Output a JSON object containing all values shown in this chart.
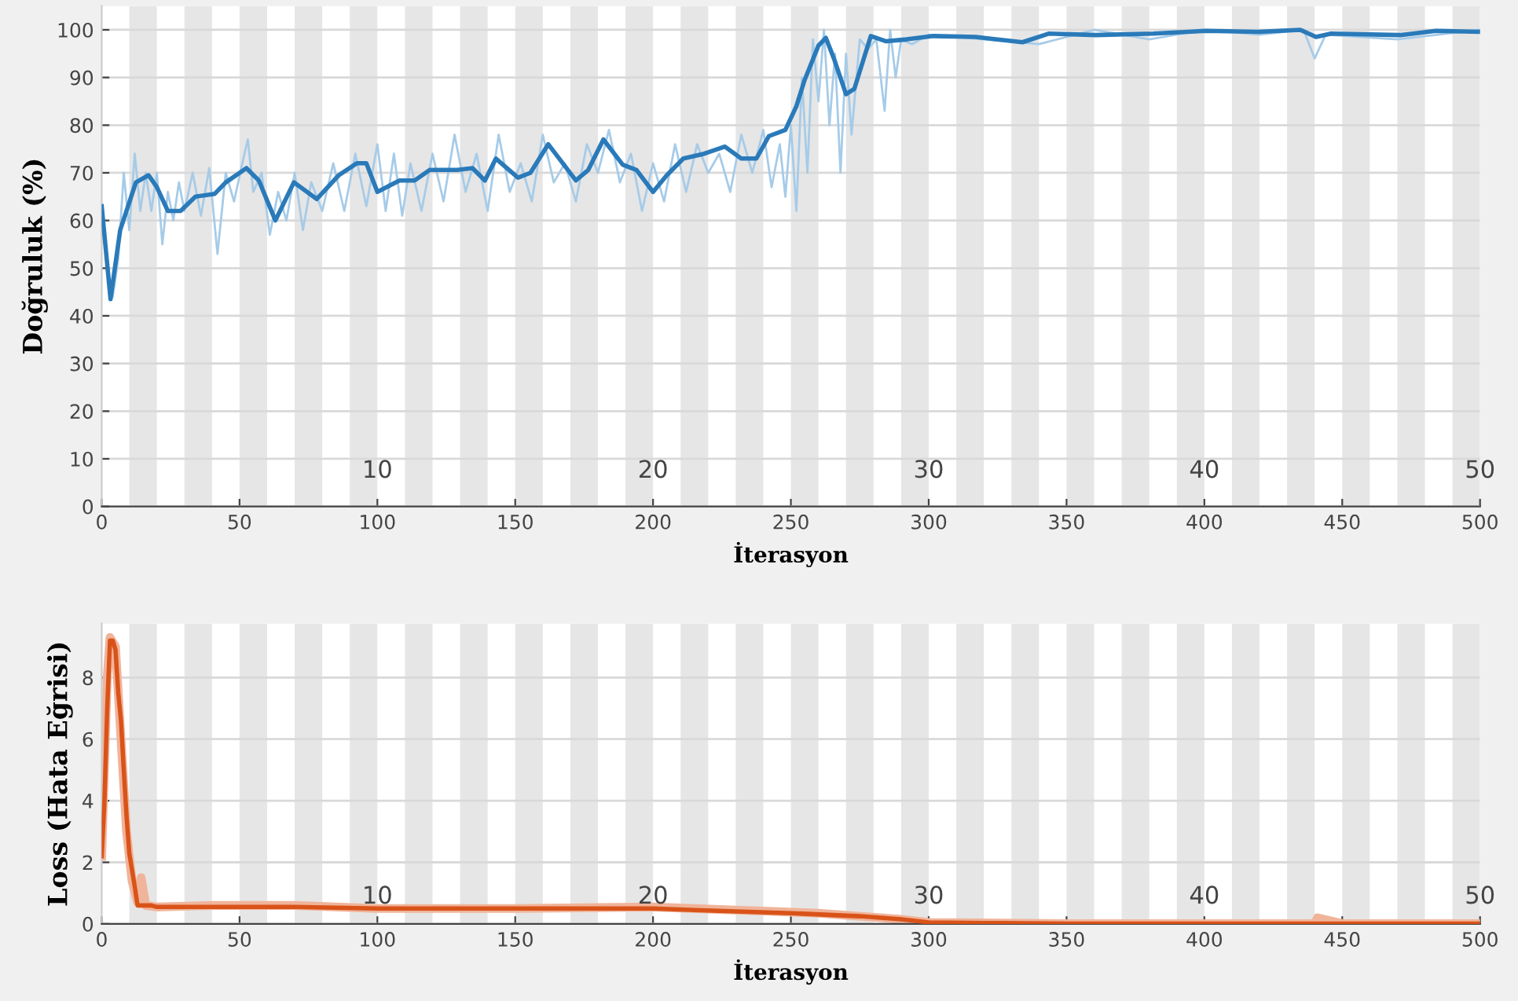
{
  "chart_data": [
    {
      "type": "line",
      "xlabel": "İterasyon",
      "ylabel": "Doğruluk (%)",
      "xlim": [
        0,
        500
      ],
      "ylim": [
        0,
        105
      ],
      "xticks": [
        0,
        50,
        100,
        150,
        200,
        250,
        300,
        350,
        400,
        450,
        500
      ],
      "yticks": [
        0,
        10,
        20,
        30,
        40,
        50,
        60,
        70,
        80,
        90,
        100
      ],
      "grid": "y",
      "legend": false,
      "marker": "none",
      "line_style": "solid",
      "series": [
        {
          "color": "#a6cbe8",
          "x": [
            0,
            2,
            4,
            6,
            8,
            10,
            12,
            14,
            16,
            18,
            20,
            22,
            24,
            26,
            28,
            30,
            33,
            36,
            39,
            42,
            45,
            48,
            51,
            53,
            55,
            58,
            61,
            64,
            67,
            70,
            73,
            76,
            80,
            84,
            88,
            92,
            96,
            100,
            103,
            106,
            109,
            112,
            116,
            120,
            124,
            128,
            132,
            136,
            140,
            144,
            148,
            152,
            156,
            160,
            164,
            168,
            172,
            176,
            180,
            184,
            188,
            192,
            196,
            200,
            204,
            208,
            212,
            216,
            220,
            224,
            228,
            232,
            236,
            240,
            243,
            246,
            248,
            250,
            252,
            254,
            256,
            258,
            260,
            262,
            264,
            266,
            268,
            270,
            272,
            275,
            278,
            281,
            284,
            286,
            288,
            290,
            294,
            300,
            320,
            340,
            360,
            380,
            400,
            420,
            436,
            440,
            444,
            470,
            500
          ],
          "values": [
            63,
            50,
            44,
            52,
            70,
            58,
            74,
            62,
            70,
            62,
            70,
            55,
            66,
            60,
            68,
            62,
            70,
            61,
            71,
            53,
            70,
            64,
            72,
            77,
            66,
            70,
            57,
            66,
            60,
            70,
            58,
            68,
            62,
            72,
            62,
            74,
            63,
            76,
            62,
            74,
            61,
            72,
            62,
            74,
            64,
            78,
            66,
            74,
            62,
            78,
            66,
            72,
            64,
            78,
            68,
            72,
            64,
            76,
            70,
            79,
            68,
            74,
            62,
            72,
            64,
            76,
            66,
            76,
            70,
            74,
            66,
            78,
            70,
            79,
            67,
            76,
            65,
            80,
            62,
            90,
            70,
            98,
            85,
            100,
            80,
            95,
            70,
            95,
            78,
            98,
            96,
            98,
            83,
            100,
            90,
            98,
            97,
            99,
            98,
            97,
            100,
            98,
            100,
            99,
            100,
            94,
            99,
            98,
            100
          ]
        },
        {
          "color": "#2a7ab9",
          "x": [
            0,
            3.2,
            6.7,
            12.4,
            17,
            20,
            24,
            28.6,
            34,
            41,
            45,
            52.5,
            57,
            63,
            69.7,
            78,
            86,
            92.5,
            96,
            100,
            108,
            113.5,
            119,
            129,
            134.5,
            139,
            143,
            151,
            155.5,
            162,
            172,
            176.5,
            182,
            189,
            194,
            200,
            205,
            211,
            218.5,
            226,
            232,
            237.5,
            242,
            248,
            252,
            255,
            260,
            262.7,
            265.6,
            270,
            273,
            279,
            284.6,
            292,
            301.7,
            317,
            334,
            343.5,
            360.6,
            381.5,
            400.6,
            419.6,
            434.8,
            440.5,
            446,
            471,
            484,
            500
          ],
          "values": [
            63,
            43.5,
            58,
            68,
            69.5,
            67,
            62,
            62,
            65,
            65.6,
            68,
            71,
            68.4,
            60,
            68,
            64.5,
            69.5,
            72,
            72,
            66,
            68.4,
            68.4,
            70.6,
            70.6,
            71,
            68.4,
            73,
            69,
            70,
            76,
            68.4,
            70.6,
            77,
            71.7,
            70.6,
            66,
            69.5,
            73,
            74,
            75.5,
            73,
            73,
            77.7,
            79,
            84,
            89.5,
            96.7,
            98.3,
            94,
            86.5,
            87.6,
            98.7,
            97.6,
            98,
            98.7,
            98.5,
            97.4,
            99.2,
            98.9,
            99.2,
            99.8,
            99.6,
            100,
            98.5,
            99.2,
            98.9,
            99.8,
            99.6
          ]
        }
      ],
      "bands": [
        {
          "axis": "x",
          "from": 10,
          "to": 20,
          "color": "#e6e6e6"
        },
        {
          "axis": "x",
          "from": 30,
          "to": 40,
          "color": "#e6e6e6"
        },
        {
          "axis": "x",
          "from": 50,
          "to": 60,
          "color": "#e6e6e6"
        },
        {
          "axis": "x",
          "from": 70,
          "to": 80,
          "color": "#e6e6e6"
        },
        {
          "axis": "x",
          "from": 90,
          "to": 100,
          "color": "#e6e6e6"
        },
        {
          "axis": "x",
          "from": 110,
          "to": 120,
          "color": "#e6e6e6"
        },
        {
          "axis": "x",
          "from": 130,
          "to": 140,
          "color": "#e6e6e6"
        },
        {
          "axis": "x",
          "from": 150,
          "to": 160,
          "color": "#e6e6e6"
        },
        {
          "axis": "x",
          "from": 170,
          "to": 180,
          "color": "#e6e6e6"
        },
        {
          "axis": "x",
          "from": 190,
          "to": 200,
          "color": "#e6e6e6"
        },
        {
          "axis": "x",
          "from": 210,
          "to": 220,
          "color": "#e6e6e6"
        },
        {
          "axis": "x",
          "from": 230,
          "to": 240,
          "color": "#e6e6e6"
        },
        {
          "axis": "x",
          "from": 250,
          "to": 260,
          "color": "#e6e6e6"
        },
        {
          "axis": "x",
          "from": 270,
          "to": 280,
          "color": "#e6e6e6"
        },
        {
          "axis": "x",
          "from": 290,
          "to": 300,
          "color": "#e6e6e6"
        },
        {
          "axis": "x",
          "from": 310,
          "to": 320,
          "color": "#e6e6e6"
        },
        {
          "axis": "x",
          "from": 330,
          "to": 340,
          "color": "#e6e6e6"
        },
        {
          "axis": "x",
          "from": 350,
          "to": 360,
          "color": "#e6e6e6"
        },
        {
          "axis": "x",
          "from": 370,
          "to": 380,
          "color": "#e6e6e6"
        },
        {
          "axis": "x",
          "from": 390,
          "to": 400,
          "color": "#e6e6e6"
        },
        {
          "axis": "x",
          "from": 410,
          "to": 420,
          "color": "#e6e6e6"
        },
        {
          "axis": "x",
          "from": 430,
          "to": 440,
          "color": "#e6e6e6"
        },
        {
          "axis": "x",
          "from": 450,
          "to": 460,
          "color": "#e6e6e6"
        },
        {
          "axis": "x",
          "from": 470,
          "to": 480,
          "color": "#e6e6e6"
        },
        {
          "axis": "x",
          "from": 490,
          "to": 500,
          "color": "#e6e6e6"
        }
      ],
      "annotations": [
        {
          "text": "10",
          "x": 100,
          "y": 5
        },
        {
          "text": "20",
          "x": 200,
          "y": 5
        },
        {
          "text": "30",
          "x": 300,
          "y": 5
        },
        {
          "text": "40",
          "x": 400,
          "y": 5
        },
        {
          "text": "50",
          "x": 500,
          "y": 5
        }
      ]
    },
    {
      "type": "line",
      "xlabel": "İterasyon",
      "ylabel": "Loss (Hata Eğrisi)",
      "xlim": [
        0,
        500
      ],
      "ylim": [
        0,
        9.75
      ],
      "xticks": [
        0,
        50,
        100,
        150,
        200,
        250,
        300,
        350,
        400,
        450,
        500
      ],
      "yticks": [
        0,
        2,
        4,
        6,
        8
      ],
      "grid": "y",
      "legend": false,
      "marker": "none",
      "line_style": "solid",
      "series": [
        {
          "color": "#f0b49a",
          "x": [
            0,
            2,
            3,
            5,
            7,
            9,
            11,
            13,
            14.3,
            16,
            20,
            40,
            70,
            100,
            150,
            200,
            230,
            260,
            290,
            300,
            350,
            440,
            441,
            450,
            500
          ],
          "values": [
            2.2,
            8,
            9.3,
            9,
            6,
            3,
            1.4,
            0.7,
            1.5,
            0.6,
            0.55,
            0.6,
            0.6,
            0.5,
            0.5,
            0.55,
            0.45,
            0.35,
            0.15,
            0.05,
            0.01,
            0.01,
            0.2,
            0.01,
            0.01
          ]
        },
        {
          "color": "#d95319",
          "x": [
            0,
            1,
            2,
            3,
            4,
            5,
            6,
            7,
            8,
            9,
            10,
            12,
            13,
            15,
            18,
            20,
            50,
            70,
            100,
            150,
            200,
            215,
            250,
            275,
            290,
            300,
            320,
            350,
            400,
            500
          ],
          "values": [
            2.2,
            4,
            7,
            9.2,
            9.2,
            8.9,
            7.5,
            6.6,
            5,
            3.5,
            2.3,
            1.2,
            0.6,
            0.6,
            0.6,
            0.55,
            0.55,
            0.55,
            0.5,
            0.5,
            0.5,
            0.45,
            0.35,
            0.25,
            0.15,
            0.05,
            0.03,
            0.01,
            0.01,
            0.01
          ]
        }
      ],
      "bands": [
        {
          "axis": "x",
          "from": 10,
          "to": 20,
          "color": "#e6e6e6"
        },
        {
          "axis": "x",
          "from": 30,
          "to": 40,
          "color": "#e6e6e6"
        },
        {
          "axis": "x",
          "from": 50,
          "to": 60,
          "color": "#e6e6e6"
        },
        {
          "axis": "x",
          "from": 70,
          "to": 80,
          "color": "#e6e6e6"
        },
        {
          "axis": "x",
          "from": 90,
          "to": 100,
          "color": "#e6e6e6"
        },
        {
          "axis": "x",
          "from": 110,
          "to": 120,
          "color": "#e6e6e6"
        },
        {
          "axis": "x",
          "from": 130,
          "to": 140,
          "color": "#e6e6e6"
        },
        {
          "axis": "x",
          "from": 150,
          "to": 160,
          "color": "#e6e6e6"
        },
        {
          "axis": "x",
          "from": 170,
          "to": 180,
          "color": "#e6e6e6"
        },
        {
          "axis": "x",
          "from": 190,
          "to": 200,
          "color": "#e6e6e6"
        },
        {
          "axis": "x",
          "from": 210,
          "to": 220,
          "color": "#e6e6e6"
        },
        {
          "axis": "x",
          "from": 230,
          "to": 240,
          "color": "#e6e6e6"
        },
        {
          "axis": "x",
          "from": 250,
          "to": 260,
          "color": "#e6e6e6"
        },
        {
          "axis": "x",
          "from": 270,
          "to": 280,
          "color": "#e6e6e6"
        },
        {
          "axis": "x",
          "from": 290,
          "to": 300,
          "color": "#e6e6e6"
        },
        {
          "axis": "x",
          "from": 310,
          "to": 320,
          "color": "#e6e6e6"
        },
        {
          "axis": "x",
          "from": 330,
          "to": 340,
          "color": "#e6e6e6"
        },
        {
          "axis": "x",
          "from": 350,
          "to": 360,
          "color": "#e6e6e6"
        },
        {
          "axis": "x",
          "from": 370,
          "to": 380,
          "color": "#e6e6e6"
        },
        {
          "axis": "x",
          "from": 390,
          "to": 400,
          "color": "#e6e6e6"
        },
        {
          "axis": "x",
          "from": 410,
          "to": 420,
          "color": "#e6e6e6"
        },
        {
          "axis": "x",
          "from": 430,
          "to": 440,
          "color": "#e6e6e6"
        },
        {
          "axis": "x",
          "from": 450,
          "to": 460,
          "color": "#e6e6e6"
        },
        {
          "axis": "x",
          "from": 470,
          "to": 480,
          "color": "#e6e6e6"
        },
        {
          "axis": "x",
          "from": 490,
          "to": 500,
          "color": "#e6e6e6"
        }
      ],
      "annotations": [
        {
          "text": "10",
          "x": 100,
          "y": 0.5
        },
        {
          "text": "20",
          "x": 200,
          "y": 0.5
        },
        {
          "text": "30",
          "x": 300,
          "y": 0.5
        },
        {
          "text": "40",
          "x": 400,
          "y": 0.5
        },
        {
          "text": "50",
          "x": 500,
          "y": 0.5
        }
      ]
    }
  ]
}
